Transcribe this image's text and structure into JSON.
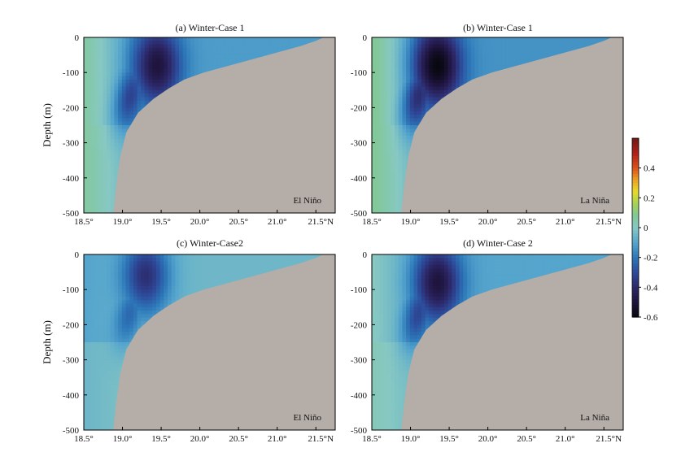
{
  "chart_data": [
    {
      "type": "heatmap",
      "panel": "a",
      "title": "(a) Winter-Case 1",
      "annotation": "El Niño",
      "ylabel": "Depth (m)",
      "xlabel": "",
      "x_ticks": [
        "18.5°",
        "19.0°",
        "19.5°",
        "20.0°",
        "20.5°",
        "21.0°",
        "21.5°N"
      ],
      "y_ticks": [
        "0",
        "-100",
        "-200",
        "-300",
        "-400",
        "-500"
      ],
      "xlim": [
        18.5,
        21.75
      ],
      "ylim": [
        -500,
        0
      ],
      "core_min": -0.5,
      "features": {
        "core_lat": 19.45,
        "core_depth": -80,
        "westside_value": 0.05,
        "shelf_value": -0.12
      }
    },
    {
      "type": "heatmap",
      "panel": "b",
      "title": "(b) Winter-Case 1",
      "annotation": "La Niña",
      "ylabel": "",
      "xlabel": "",
      "x_ticks": [
        "18.5°",
        "19.0°",
        "19.5°",
        "20.0°",
        "20.5°",
        "21.0°",
        "21.5°N"
      ],
      "y_ticks": [
        "0",
        "-100",
        "-200",
        "-300",
        "-400",
        "-500"
      ],
      "xlim": [
        18.5,
        21.75
      ],
      "ylim": [
        -500,
        0
      ],
      "core_min": -0.6,
      "features": {
        "core_lat": 19.35,
        "core_depth": -80,
        "westside_value": 0.08,
        "shelf_value": -0.14
      }
    },
    {
      "type": "heatmap",
      "panel": "c",
      "title": "(c) Winter-Case2",
      "annotation": "El Niño",
      "ylabel": "Depth (m)",
      "xlabel": "",
      "x_ticks": [
        "18.5°",
        "19.0°",
        "19.5°",
        "20.0°",
        "20.5°",
        "21.0°",
        "21.5°N"
      ],
      "y_ticks": [
        "0",
        "-100",
        "-200",
        "-300",
        "-400",
        "-500"
      ],
      "xlim": [
        18.5,
        21.75
      ],
      "ylim": [
        -500,
        0
      ],
      "core_min": -0.38,
      "features": {
        "core_lat": 19.3,
        "core_depth": -60,
        "westside_value": -0.1,
        "shelf_value": -0.05
      }
    },
    {
      "type": "heatmap",
      "panel": "d",
      "title": "(d) Winter-Case 2",
      "annotation": "La Niña",
      "ylabel": "",
      "xlabel": "",
      "x_ticks": [
        "18.5°",
        "19.0°",
        "19.5°",
        "20.0°",
        "20.5°",
        "21.0°",
        "21.5°N"
      ],
      "y_ticks": [
        "0",
        "-100",
        "-200",
        "-300",
        "-400",
        "-500"
      ],
      "xlim": [
        18.5,
        21.75
      ],
      "ylim": [
        -500,
        0
      ],
      "core_min": -0.5,
      "features": {
        "core_lat": 19.35,
        "core_depth": -80,
        "westside_value": 0.0,
        "shelf_value": -0.1
      }
    }
  ],
  "colorbar": {
    "range": [
      -0.6,
      0.6
    ],
    "tick_values": [
      0.4,
      0.2,
      0,
      -0.2,
      -0.4,
      -0.6
    ],
    "tick_labels": [
      "0.4",
      "0.2",
      "0",
      "-0.2",
      "-0.4",
      "-0.6"
    ]
  },
  "bathymetry": {
    "comment": "Continental slope (latitude in °N, depth in m) shared by all panels",
    "points": [
      [
        18.88,
        -500
      ],
      [
        18.92,
        -420
      ],
      [
        18.97,
        -340
      ],
      [
        19.05,
        -270
      ],
      [
        19.2,
        -215
      ],
      [
        19.4,
        -175
      ],
      [
        19.6,
        -145
      ],
      [
        19.8,
        -120
      ],
      [
        20.05,
        -100
      ],
      [
        20.3,
        -85
      ],
      [
        20.55,
        -70
      ],
      [
        20.8,
        -55
      ],
      [
        21.05,
        -40
      ],
      [
        21.3,
        -25
      ],
      [
        21.5,
        -10
      ],
      [
        21.6,
        0
      ]
    ]
  },
  "colors": {
    "land": "#b5ada8",
    "frame": "#000000"
  }
}
